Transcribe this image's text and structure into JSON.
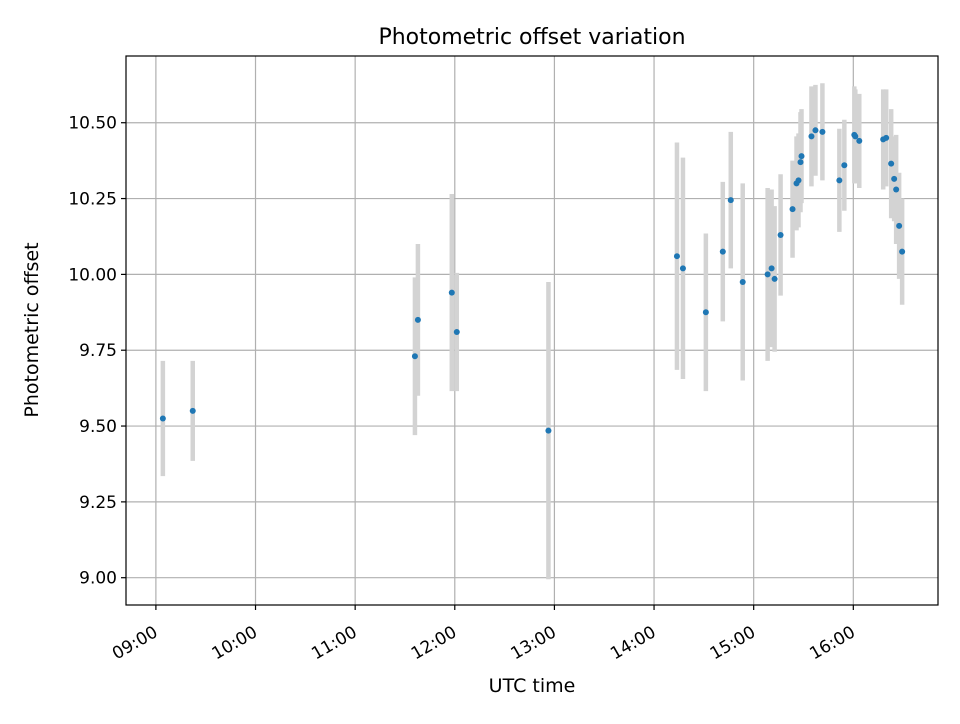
{
  "chart_data": {
    "type": "scatter",
    "title": "Photometric offset variation",
    "xlabel": "UTC time",
    "ylabel": "Photometric offset",
    "xlim": [
      8.7,
      16.85
    ],
    "ylim": [
      8.91,
      10.72
    ],
    "grid": true,
    "x_ticks": [
      {
        "value": 9,
        "label": "09:00"
      },
      {
        "value": 10,
        "label": "10:00"
      },
      {
        "value": 11,
        "label": "11:00"
      },
      {
        "value": 12,
        "label": "12:00"
      },
      {
        "value": 13,
        "label": "13:00"
      },
      {
        "value": 14,
        "label": "14:00"
      },
      {
        "value": 15,
        "label": "15:00"
      },
      {
        "value": 16,
        "label": "16:00"
      }
    ],
    "y_ticks": [
      {
        "value": 9.0,
        "label": "9.00"
      },
      {
        "value": 9.25,
        "label": "9.25"
      },
      {
        "value": 9.5,
        "label": "9.50"
      },
      {
        "value": 9.75,
        "label": "9.75"
      },
      {
        "value": 10.0,
        "label": "10.00"
      },
      {
        "value": 10.25,
        "label": "10.25"
      },
      {
        "value": 10.5,
        "label": "10.50"
      }
    ],
    "colors": {
      "point": "#1f77b4",
      "errorbar": "#d3d3d3",
      "grid": "#b0b0b0",
      "axis": "#000000"
    },
    "points": [
      {
        "x": 9.07,
        "y": 9.525,
        "err": 0.19
      },
      {
        "x": 9.37,
        "y": 9.55,
        "err": 0.165
      },
      {
        "x": 11.6,
        "y": 9.73,
        "err": 0.26
      },
      {
        "x": 11.63,
        "y": 9.85,
        "err": 0.25
      },
      {
        "x": 11.97,
        "y": 9.94,
        "err": 0.325
      },
      {
        "x": 12.02,
        "y": 9.81,
        "err": 0.195
      },
      {
        "x": 12.94,
        "y": 9.485,
        "err": 0.49
      },
      {
        "x": 14.23,
        "y": 10.06,
        "err": 0.375
      },
      {
        "x": 14.29,
        "y": 10.02,
        "err": 0.365
      },
      {
        "x": 14.52,
        "y": 9.875,
        "err": 0.26
      },
      {
        "x": 14.69,
        "y": 10.075,
        "err": 0.23
      },
      {
        "x": 14.77,
        "y": 10.245,
        "err": 0.225
      },
      {
        "x": 14.89,
        "y": 9.975,
        "err": 0.325
      },
      {
        "x": 15.14,
        "y": 10.0,
        "err": 0.285
      },
      {
        "x": 15.18,
        "y": 10.02,
        "err": 0.26
      },
      {
        "x": 15.21,
        "y": 9.985,
        "err": 0.24
      },
      {
        "x": 15.27,
        "y": 10.13,
        "err": 0.2
      },
      {
        "x": 15.39,
        "y": 10.215,
        "err": 0.16
      },
      {
        "x": 15.43,
        "y": 10.3,
        "err": 0.155
      },
      {
        "x": 15.45,
        "y": 10.31,
        "err": 0.155
      },
      {
        "x": 15.47,
        "y": 10.37,
        "err": 0.165
      },
      {
        "x": 15.48,
        "y": 10.39,
        "err": 0.155
      },
      {
        "x": 15.58,
        "y": 10.455,
        "err": 0.165
      },
      {
        "x": 15.62,
        "y": 10.475,
        "err": 0.15
      },
      {
        "x": 15.69,
        "y": 10.47,
        "err": 0.16
      },
      {
        "x": 15.86,
        "y": 10.31,
        "err": 0.17
      },
      {
        "x": 15.91,
        "y": 10.36,
        "err": 0.15
      },
      {
        "x": 16.01,
        "y": 10.46,
        "err": 0.16
      },
      {
        "x": 16.02,
        "y": 10.455,
        "err": 0.155
      },
      {
        "x": 16.06,
        "y": 10.44,
        "err": 0.155
      },
      {
        "x": 16.3,
        "y": 10.445,
        "err": 0.165
      },
      {
        "x": 16.33,
        "y": 10.45,
        "err": 0.16
      },
      {
        "x": 16.38,
        "y": 10.365,
        "err": 0.18
      },
      {
        "x": 16.41,
        "y": 10.315,
        "err": 0.14
      },
      {
        "x": 16.43,
        "y": 10.28,
        "err": 0.18
      },
      {
        "x": 16.46,
        "y": 10.16,
        "err": 0.175
      },
      {
        "x": 16.49,
        "y": 10.075,
        "err": 0.175
      }
    ]
  }
}
